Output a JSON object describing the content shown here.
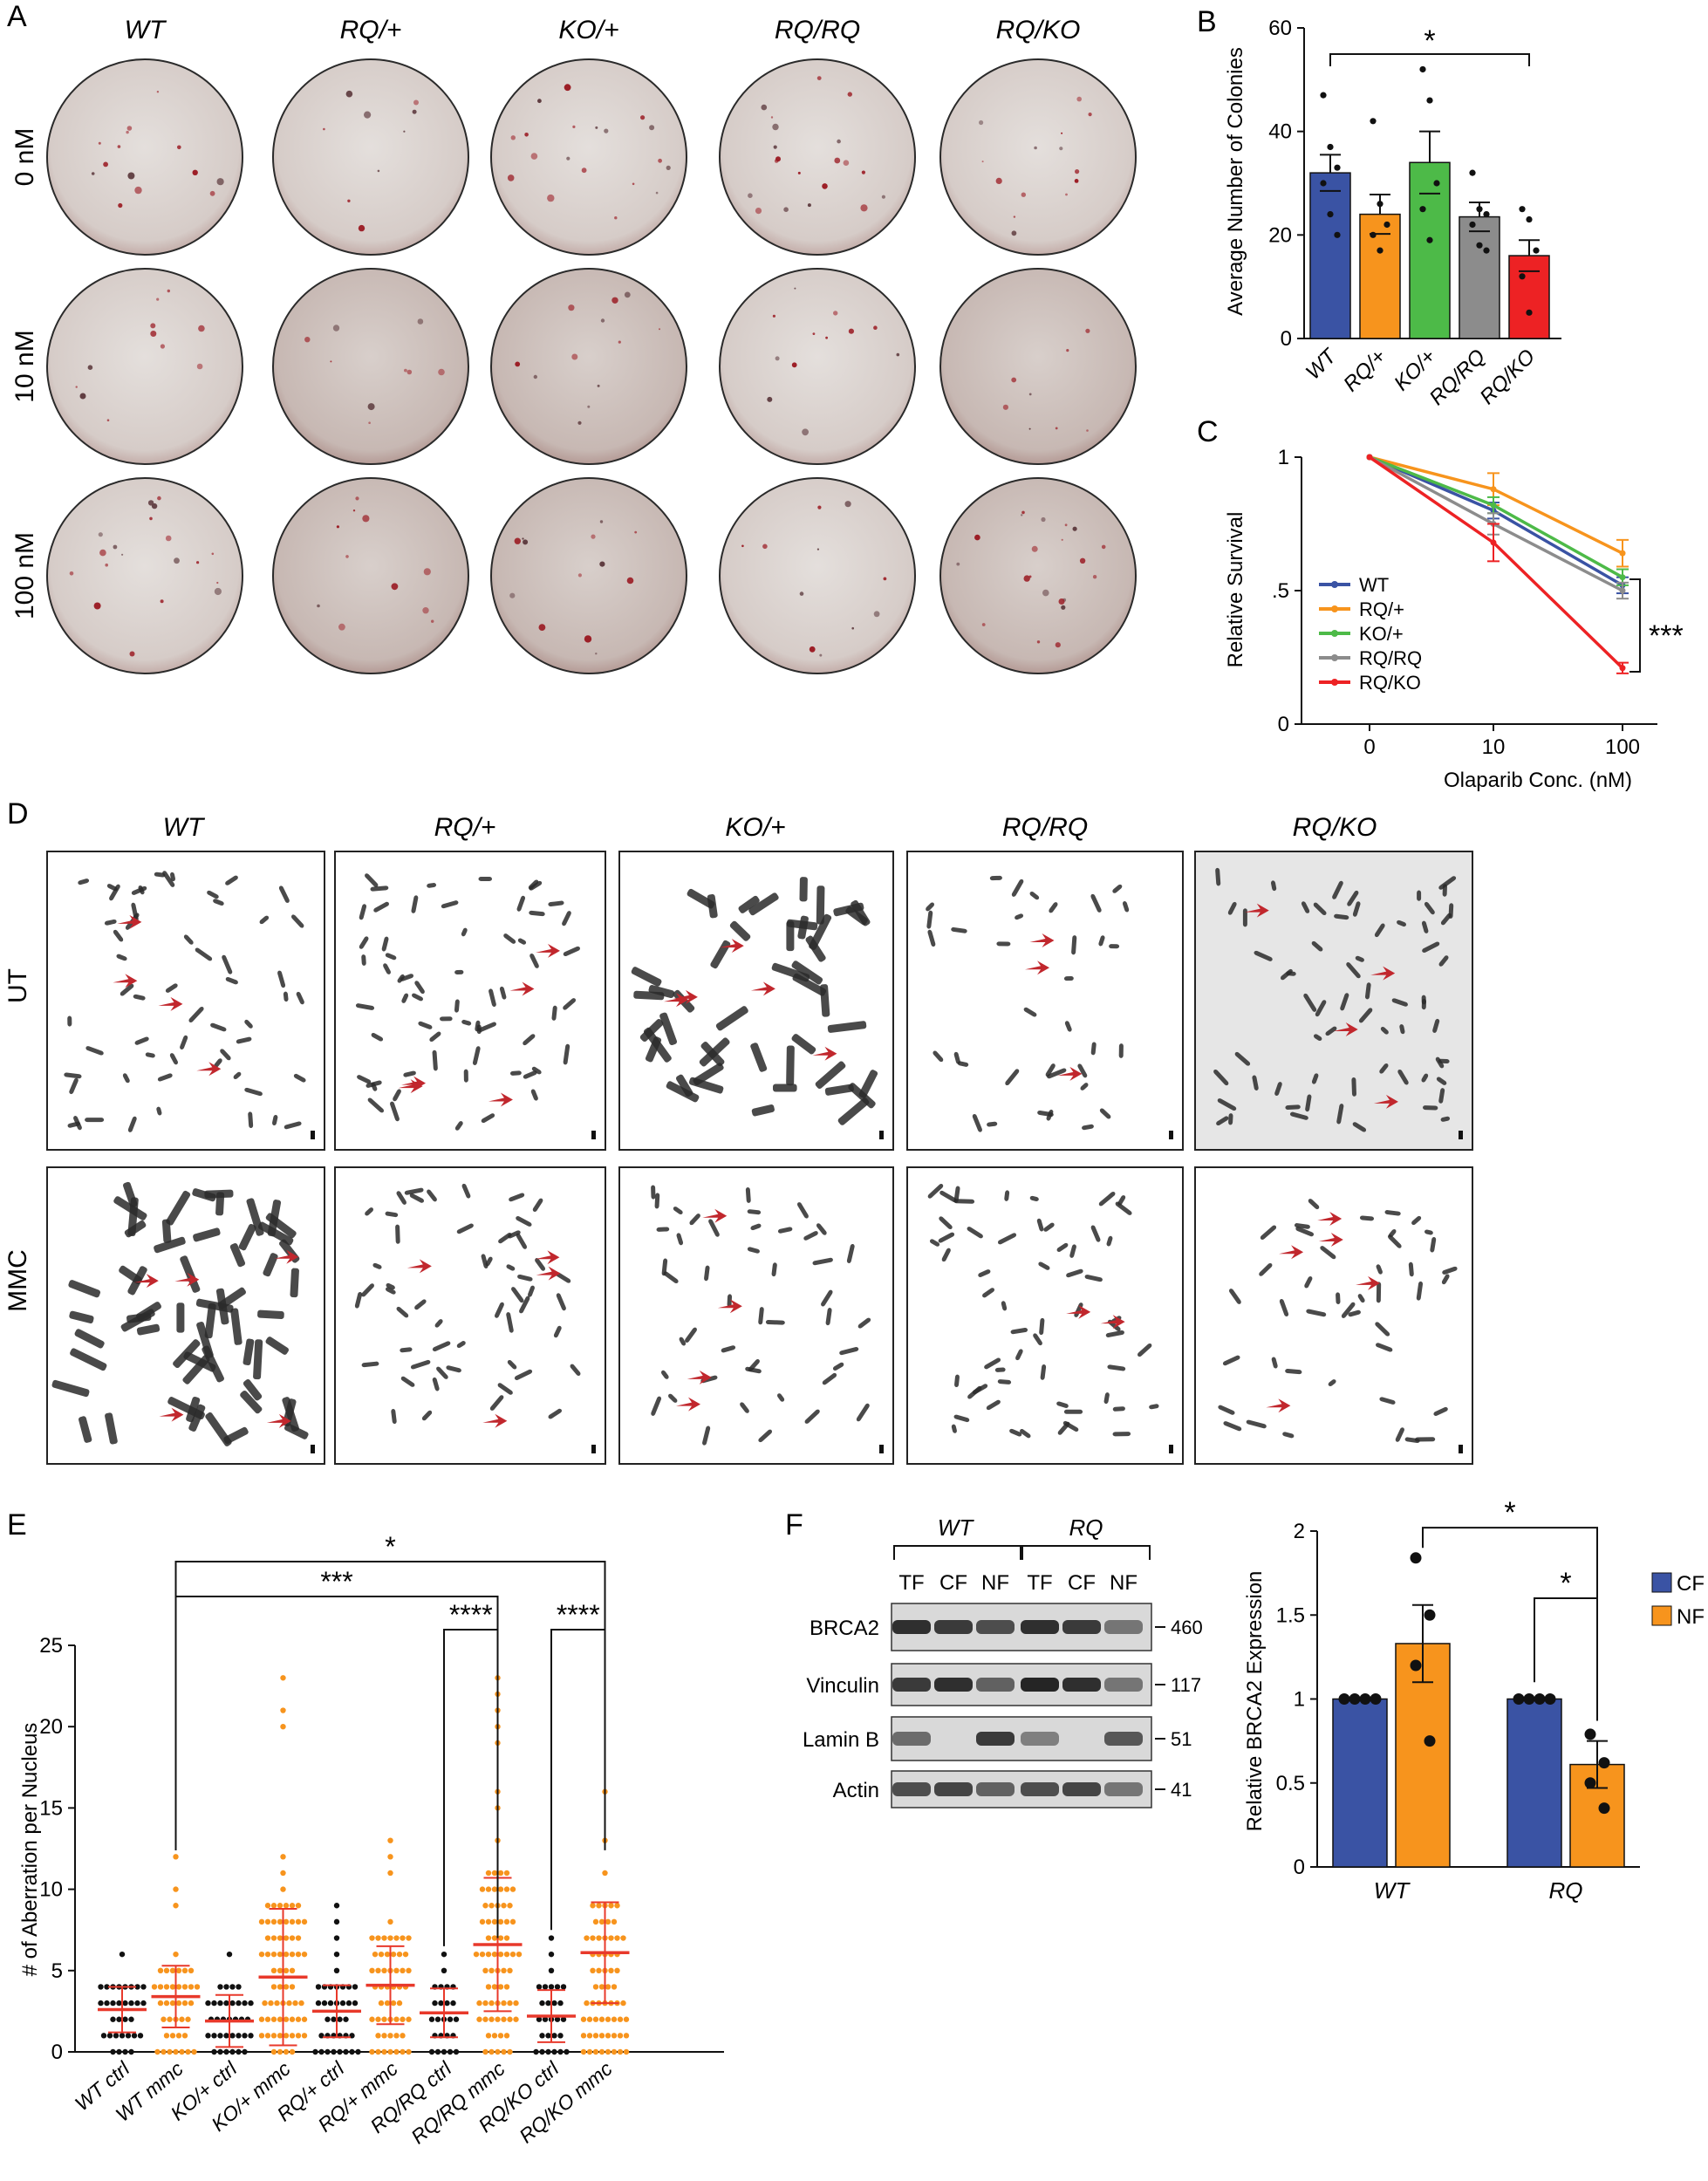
{
  "panel_letters": {
    "a": "A",
    "b": "B",
    "c": "C",
    "d": "D",
    "e": "E",
    "f": "F"
  },
  "colors": {
    "wt": "#3a53a4",
    "rq_het": "#f7941d",
    "ko_het": "#4dba48",
    "rq_rq": "#8c8c8c",
    "rq_ko": "#ed2224",
    "ctrl_dot": "#111111",
    "mmc_dot": "#f7941d",
    "bar_red": "#e8392b",
    "arrow": "#c1272d"
  },
  "panel_a": {
    "columns": [
      "WT",
      "RQ/+",
      "KO/+",
      "RQ/RQ",
      "RQ/KO"
    ],
    "rows": [
      "0 nM",
      "10 nM",
      "100 nM"
    ]
  },
  "panel_d": {
    "columns": [
      "WT",
      "RQ/+",
      "KO/+",
      "RQ/RQ",
      "RQ/KO"
    ],
    "rows": [
      "UT",
      "MMC"
    ]
  },
  "chart_data": [
    {
      "id": "B",
      "type": "bar",
      "title": "",
      "categories": [
        "WT",
        "RQ/+",
        "KO/+",
        "RQ/RQ",
        "RQ/KO"
      ],
      "values": [
        32,
        24,
        34,
        23.5,
        16
      ],
      "errors": [
        3.5,
        3.8,
        6,
        2.8,
        3
      ],
      "points": [
        [
          47,
          37,
          33,
          30,
          24,
          20
        ],
        [
          42,
          26,
          22,
          20,
          17
        ],
        [
          52,
          46,
          30,
          25,
          19
        ],
        [
          32,
          25,
          24,
          22,
          18,
          17
        ],
        [
          25,
          23,
          17,
          12,
          5
        ]
      ],
      "xlabel": "",
      "ylabel": "Average Number of Colonies",
      "yticks": [
        "0",
        "20",
        "40",
        "60"
      ],
      "ylim": [
        0,
        60
      ],
      "significance": [
        {
          "from": "WT",
          "to": "RQ/KO",
          "label": "*"
        }
      ]
    },
    {
      "id": "C",
      "type": "line",
      "x_categories": [
        "0",
        "10",
        "100"
      ],
      "series": [
        {
          "name": "WT",
          "values": [
            1,
            0.8,
            0.52
          ],
          "err": [
            0,
            0.03,
            0.03
          ]
        },
        {
          "name": "RQ/+",
          "values": [
            1,
            0.88,
            0.64
          ],
          "err": [
            0,
            0.06,
            0.05
          ]
        },
        {
          "name": "KO/+",
          "values": [
            1,
            0.82,
            0.55
          ],
          "err": [
            0,
            0.03,
            0.03
          ]
        },
        {
          "name": "RQ/RQ",
          "values": [
            1,
            0.75,
            0.5
          ],
          "err": [
            0,
            0.04,
            0.03
          ]
        },
        {
          "name": "RQ/KO",
          "values": [
            1,
            0.68,
            0.21
          ],
          "err": [
            0,
            0.07,
            0.02
          ]
        }
      ],
      "xlabel": "Olaparib Conc. (nM)",
      "ylabel": "Relative Survival",
      "yticks": [
        "0",
        ".5",
        "1"
      ],
      "ylim": [
        0,
        1
      ],
      "significance": "***",
      "legend_position": "left"
    },
    {
      "id": "E",
      "type": "scatter",
      "categories": [
        "WT ctrl",
        "WT mmc",
        "KO/+ ctrl",
        "KO/+ mmc",
        "RQ/+ ctrl",
        "RQ/+ mmc",
        "RQ/RQ ctrl",
        "RQ/RQ mmc",
        "RQ/KO ctrl",
        "RQ/KO mmc"
      ],
      "means": [
        2.6,
        3.4,
        1.9,
        4.6,
        2.5,
        4.1,
        2.4,
        6.6,
        2.2,
        6.1
      ],
      "sds": [
        1.4,
        1.9,
        1.6,
        4.2,
        1.6,
        2.4,
        1.5,
        4.1,
        1.6,
        3.1
      ],
      "max_points": [
        6,
        12,
        6,
        23,
        9,
        13,
        6,
        23,
        7,
        16
      ],
      "xlabel": "",
      "ylabel": "# of Aberration per Nucleus",
      "yticks": [
        "0",
        "5",
        "10",
        "15",
        "20",
        "25"
      ],
      "ylim": [
        0,
        25
      ],
      "significance": [
        {
          "from": "WT mmc",
          "to": "RQ/KO mmc",
          "label": "*"
        },
        {
          "from": "WT mmc",
          "to": "RQ/RQ mmc",
          "label": "***"
        },
        {
          "from": "RQ/RQ ctrl",
          "to": "RQ/RQ mmc",
          "label": "****"
        },
        {
          "from": "RQ/KO ctrl",
          "to": "RQ/KO mmc",
          "label": "****"
        }
      ]
    },
    {
      "id": "F-bar",
      "type": "bar",
      "groups": [
        "WT",
        "RQ"
      ],
      "series": [
        {
          "name": "CF",
          "values": [
            1,
            1
          ],
          "err": [
            0,
            0
          ],
          "points": [
            [
              1,
              1,
              1,
              1
            ],
            [
              1,
              1,
              1,
              1
            ]
          ]
        },
        {
          "name": "NF",
          "values": [
            1.33,
            0.61
          ],
          "err": [
            0.23,
            0.14
          ],
          "points": [
            [
              1.84,
              1.5,
              1.2,
              0.75
            ],
            [
              0.79,
              0.62,
              0.5,
              0.35
            ]
          ]
        }
      ],
      "ylabel": "Relative BRCA2 Expression",
      "yticks": [
        "0",
        "0.5",
        "1",
        "1.5",
        "2"
      ],
      "ylim": [
        0,
        2
      ],
      "significance": [
        {
          "label": "*"
        },
        {
          "label": "*"
        }
      ],
      "legend_position": "right"
    }
  ],
  "panel_f_blot": {
    "groups": [
      "WT",
      "RQ"
    ],
    "lanes": [
      "TF",
      "CF",
      "NF",
      "TF",
      "CF",
      "NF"
    ],
    "rows": [
      {
        "label": "BRCA2",
        "kd": "460"
      },
      {
        "label": "Vinculin",
        "kd": "117"
      },
      {
        "label": "Lamin B",
        "kd": "51"
      },
      {
        "label": "Actin",
        "kd": "41"
      }
    ]
  }
}
